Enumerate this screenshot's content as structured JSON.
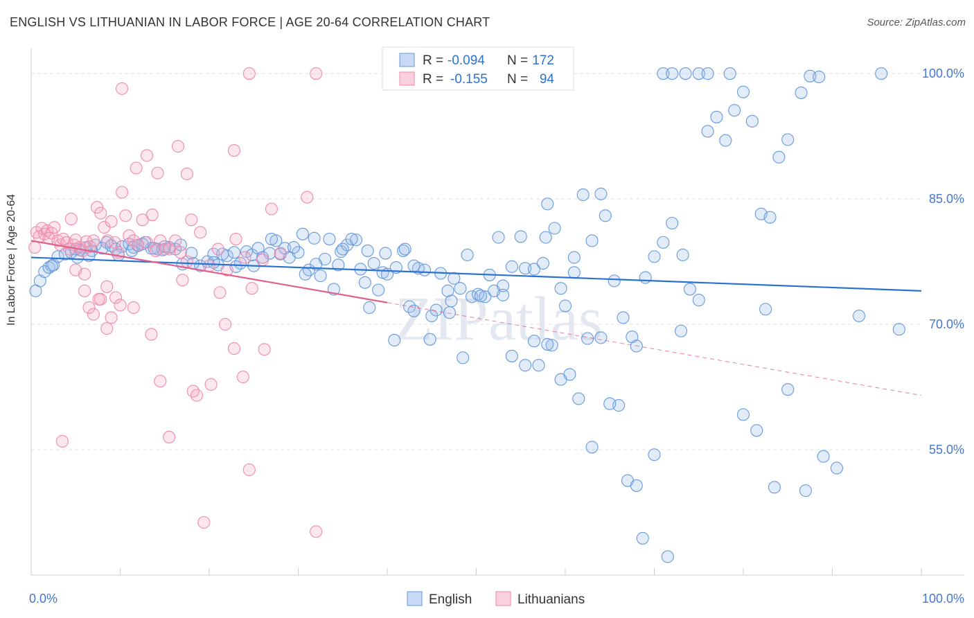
{
  "title": "ENGLISH VS LITHUANIAN IN LABOR FORCE | AGE 20-64 CORRELATION CHART",
  "source": "Source: ZipAtlas.com",
  "watermark": "ZIPatlas",
  "colors": {
    "english": "#6699dd",
    "english_line": "#2a72d0",
    "lithuanians": "#f08aaa",
    "lithuanians_line": "#e0608a",
    "axis_value": "#4477cc"
  },
  "legend": {
    "rows": [
      {
        "r_label": "R =",
        "r_value": "-0.094",
        "n_label": "N =",
        "n_value": "172"
      },
      {
        "r_label": "R =",
        "r_value": "-0.155",
        "n_label": "N =",
        "n_value": "94"
      }
    ]
  },
  "chart_data": {
    "type": "scatter",
    "xlabel": "",
    "ylabel": "In Labor Force | Age 20-64",
    "xlim": [
      0,
      100
    ],
    "ylim": [
      40,
      103
    ],
    "x_tick_labels": [
      "0.0%",
      "100.0%"
    ],
    "y_ticks": [
      55,
      70,
      85,
      100
    ],
    "y_tick_labels": [
      "55.0%",
      "70.0%",
      "85.0%",
      "100.0%"
    ],
    "grid": true,
    "legend_position": "top-center",
    "series": [
      {
        "name": "English",
        "r": -0.094,
        "n": 172,
        "trend": {
          "x0": 0,
          "y0": 78.0,
          "x1": 100,
          "y1": 74.0,
          "dashed_from": null
        },
        "points": [
          [
            0.5,
            74.0
          ],
          [
            1.0,
            75.2
          ],
          [
            1.5,
            76.3
          ],
          [
            2.0,
            76.8
          ],
          [
            2.5,
            77.1
          ],
          [
            3.0,
            78.1
          ],
          [
            3.8,
            78.4
          ],
          [
            4.5,
            78.6
          ],
          [
            5.0,
            79.0
          ],
          [
            5.5,
            78.9
          ],
          [
            6.2,
            79.2
          ],
          [
            6.8,
            78.8
          ],
          [
            7.2,
            79.5
          ],
          [
            8.0,
            79.1
          ],
          [
            8.5,
            79.8
          ],
          [
            9.0,
            79.4
          ],
          [
            9.5,
            79.0
          ],
          [
            10.2,
            79.3
          ],
          [
            11.0,
            79.6
          ],
          [
            11.5,
            79.2
          ],
          [
            12.0,
            79.4
          ],
          [
            12.8,
            79.8
          ],
          [
            13.5,
            79.1
          ],
          [
            14.2,
            79.0
          ],
          [
            14.8,
            78.9
          ],
          [
            15.5,
            79.2
          ],
          [
            16.2,
            79.0
          ],
          [
            17.0,
            77.2
          ],
          [
            18.0,
            78.5
          ],
          [
            19.0,
            77.0
          ],
          [
            19.8,
            77.5
          ],
          [
            20.5,
            78.4
          ],
          [
            21.0,
            77.1
          ],
          [
            22.0,
            78.2
          ],
          [
            22.8,
            78.6
          ],
          [
            23.5,
            77.3
          ],
          [
            24.2,
            78.7
          ],
          [
            24.8,
            78.3
          ],
          [
            25.5,
            79.1
          ],
          [
            26.0,
            78.0
          ],
          [
            26.8,
            78.5
          ],
          [
            27.5,
            80.0
          ],
          [
            28.0,
            78.4
          ],
          [
            28.5,
            79.1
          ],
          [
            29.0,
            78.0
          ],
          [
            30.0,
            78.6
          ],
          [
            30.5,
            80.8
          ],
          [
            31.2,
            76.5
          ],
          [
            31.8,
            80.3
          ],
          [
            32.5,
            75.8
          ],
          [
            33.0,
            77.8
          ],
          [
            33.5,
            80.2
          ],
          [
            34.0,
            74.2
          ],
          [
            34.8,
            78.7
          ],
          [
            35.5,
            79.5
          ],
          [
            36.5,
            80.1
          ],
          [
            37.0,
            76.6
          ],
          [
            37.8,
            78.8
          ],
          [
            38.5,
            77.3
          ],
          [
            39.0,
            74.1
          ],
          [
            39.5,
            76.2
          ],
          [
            40.0,
            76.0
          ],
          [
            41.0,
            76.8
          ],
          [
            41.8,
            78.8
          ],
          [
            42.5,
            72.1
          ],
          [
            43.0,
            71.6
          ],
          [
            43.5,
            76.7
          ],
          [
            44.2,
            76.5
          ],
          [
            45.0,
            71.0
          ],
          [
            45.5,
            71.7
          ],
          [
            46.0,
            76.1
          ],
          [
            47.0,
            71.4
          ],
          [
            47.5,
            75.5
          ],
          [
            48.2,
            74.3
          ],
          [
            49.0,
            78.3
          ],
          [
            49.5,
            73.3
          ],
          [
            50.2,
            73.6
          ],
          [
            51.0,
            73.3
          ],
          [
            51.5,
            75.9
          ],
          [
            52.0,
            74.0
          ],
          [
            52.5,
            80.4
          ],
          [
            53.0,
            74.6
          ],
          [
            54.0,
            76.9
          ],
          [
            55.0,
            80.5
          ],
          [
            55.5,
            76.7
          ],
          [
            56.5,
            76.6
          ],
          [
            57.5,
            77.3
          ],
          [
            58.0,
            84.4
          ],
          [
            58.8,
            81.5
          ],
          [
            59.5,
            74.3
          ],
          [
            60.0,
            72.2
          ],
          [
            61.0,
            76.2
          ],
          [
            62.0,
            85.5
          ],
          [
            63.0,
            80.0
          ],
          [
            64.0,
            85.6
          ],
          [
            65.5,
            75.2
          ],
          [
            66.5,
            70.8
          ],
          [
            67.5,
            68.5
          ],
          [
            68.0,
            67.4
          ],
          [
            69.0,
            75.6
          ],
          [
            70.0,
            78.1
          ],
          [
            71.0,
            79.8
          ],
          [
            72.0,
            82.1
          ],
          [
            73.0,
            69.2
          ],
          [
            74.0,
            74.2
          ],
          [
            75.0,
            72.9
          ],
          [
            76.0,
            93.1
          ],
          [
            77.0,
            94.8
          ],
          [
            78.0,
            92.0
          ],
          [
            79.0,
            95.6
          ],
          [
            80.0,
            97.8
          ],
          [
            81.0,
            94.3
          ],
          [
            82.0,
            83.2
          ],
          [
            83.0,
            82.8
          ],
          [
            84.0,
            90.0
          ],
          [
            85.0,
            92.1
          ],
          [
            86.5,
            97.7
          ],
          [
            87.5,
            99.7
          ],
          [
            88.5,
            99.6
          ],
          [
            56.5,
            68.0
          ],
          [
            58.5,
            67.5
          ],
          [
            59.5,
            63.4
          ],
          [
            60.5,
            64.0
          ],
          [
            61.5,
            61.1
          ],
          [
            63.0,
            55.3
          ],
          [
            64.0,
            68.4
          ],
          [
            66.0,
            60.3
          ],
          [
            67.0,
            51.3
          ],
          [
            68.0,
            50.7
          ],
          [
            68.7,
            44.4
          ],
          [
            70.0,
            54.4
          ],
          [
            71.0,
            100.0
          ],
          [
            72.0,
            100.0
          ],
          [
            73.5,
            100.0
          ],
          [
            75.0,
            100.0
          ],
          [
            76.0,
            100.0
          ],
          [
            78.5,
            100.0
          ],
          [
            80.0,
            59.2
          ],
          [
            81.5,
            57.3
          ],
          [
            82.5,
            71.8
          ],
          [
            83.5,
            50.5
          ],
          [
            85.0,
            62.2
          ],
          [
            87.0,
            50.1
          ],
          [
            89.0,
            54.2
          ],
          [
            90.5,
            52.8
          ],
          [
            93.0,
            71.0
          ],
          [
            95.5,
            100.0
          ],
          [
            97.5,
            69.4
          ],
          [
            2.3,
            77.0
          ],
          [
            6.5,
            78.2
          ],
          [
            5.2,
            78.0
          ],
          [
            11.3,
            78.8
          ],
          [
            12.5,
            79.6
          ],
          [
            15.0,
            79.3
          ],
          [
            18.2,
            77.3
          ],
          [
            20.5,
            77.4
          ],
          [
            23.0,
            76.9
          ],
          [
            25.0,
            77.0
          ],
          [
            29.5,
            79.2
          ],
          [
            34.5,
            77.1
          ],
          [
            36.0,
            80.2
          ],
          [
            38.0,
            72.0
          ],
          [
            40.8,
            68.1
          ],
          [
            44.8,
            68.2
          ],
          [
            47.2,
            72.8
          ],
          [
            50.5,
            73.4
          ],
          [
            53.0,
            73.5
          ],
          [
            54.0,
            66.2
          ],
          [
            55.5,
            65.1
          ],
          [
            57.0,
            65.1
          ],
          [
            58.0,
            67.6
          ],
          [
            62.5,
            68.3
          ],
          [
            65.0,
            60.5
          ],
          [
            61.0,
            78.0
          ],
          [
            64.5,
            83.0
          ],
          [
            46.8,
            74.0
          ],
          [
            48.5,
            66.0
          ],
          [
            71.5,
            42.2
          ],
          [
            43.0,
            77.0
          ],
          [
            37.5,
            75.0
          ],
          [
            32.0,
            77.2
          ],
          [
            27.0,
            80.2
          ],
          [
            9.8,
            78.3
          ],
          [
            13.8,
            79.1
          ],
          [
            16.8,
            79.5
          ],
          [
            21.5,
            78.4
          ],
          [
            30.8,
            76.0
          ],
          [
            35.0,
            79.0
          ],
          [
            39.8,
            78.5
          ],
          [
            42.0,
            79.0
          ],
          [
            57.8,
            80.4
          ],
          [
            73.2,
            78.3
          ]
        ]
      },
      {
        "name": "Lithuanians",
        "r": -0.155,
        "n": 94,
        "trend": {
          "x0": 0,
          "y0": 80.0,
          "x1": 100,
          "y1": 61.5,
          "dashed_from": 40
        },
        "points": [
          [
            0.4,
            79.2
          ],
          [
            0.6,
            81.0
          ],
          [
            0.9,
            80.5
          ],
          [
            1.2,
            81.5
          ],
          [
            1.5,
            80.8
          ],
          [
            1.8,
            81.2
          ],
          [
            2.0,
            80.3
          ],
          [
            2.3,
            80.9
          ],
          [
            2.6,
            81.6
          ],
          [
            3.0,
            80.0
          ],
          [
            3.3,
            79.5
          ],
          [
            3.6,
            80.2
          ],
          [
            4.0,
            79.8
          ],
          [
            4.3,
            79.0
          ],
          [
            4.5,
            82.6
          ],
          [
            4.8,
            79.5
          ],
          [
            5.0,
            80.1
          ],
          [
            5.5,
            79.2
          ],
          [
            5.8,
            78.8
          ],
          [
            6.2,
            79.9
          ],
          [
            6.6,
            79.3
          ],
          [
            7.0,
            80.0
          ],
          [
            7.4,
            84.0
          ],
          [
            7.8,
            83.3
          ],
          [
            8.2,
            81.6
          ],
          [
            8.6,
            80.0
          ],
          [
            9.0,
            82.3
          ],
          [
            9.4,
            79.8
          ],
          [
            9.8,
            78.6
          ],
          [
            10.2,
            85.8
          ],
          [
            10.6,
            83.0
          ],
          [
            11.0,
            80.6
          ],
          [
            11.5,
            80.0
          ],
          [
            12.0,
            79.5
          ],
          [
            12.5,
            82.5
          ],
          [
            13.0,
            79.8
          ],
          [
            13.6,
            83.1
          ],
          [
            14.0,
            78.8
          ],
          [
            14.5,
            80.0
          ],
          [
            15.0,
            79.0
          ],
          [
            15.5,
            79.0
          ],
          [
            16.2,
            80.0
          ],
          [
            16.8,
            78.6
          ],
          [
            17.5,
            77.5
          ],
          [
            18.0,
            82.5
          ],
          [
            19.0,
            81.0
          ],
          [
            20.0,
            77.0
          ],
          [
            21.0,
            79.0
          ],
          [
            22.0,
            76.5
          ],
          [
            23.0,
            80.2
          ],
          [
            24.0,
            78.0
          ],
          [
            26.0,
            77.7
          ],
          [
            27.0,
            83.8
          ],
          [
            28.0,
            78.5
          ],
          [
            10.2,
            98.2
          ],
          [
            11.8,
            88.7
          ],
          [
            13.0,
            90.2
          ],
          [
            14.2,
            88.1
          ],
          [
            16.5,
            91.3
          ],
          [
            17.5,
            88.0
          ],
          [
            22.8,
            90.8
          ],
          [
            24.5,
            100.0
          ],
          [
            32.0,
            100.0
          ],
          [
            31.0,
            85.2
          ],
          [
            6.0,
            74.0
          ],
          [
            6.5,
            72.0
          ],
          [
            7.0,
            71.2
          ],
          [
            7.8,
            73.0
          ],
          [
            8.5,
            74.5
          ],
          [
            9.0,
            70.8
          ],
          [
            9.5,
            73.2
          ],
          [
            10.0,
            72.3
          ],
          [
            11.5,
            72.0
          ],
          [
            13.5,
            68.8
          ],
          [
            14.5,
            63.2
          ],
          [
            15.5,
            56.5
          ],
          [
            17.0,
            75.3
          ],
          [
            18.2,
            62.0
          ],
          [
            18.6,
            61.5
          ],
          [
            19.4,
            46.3
          ],
          [
            20.2,
            62.8
          ],
          [
            21.2,
            73.8
          ],
          [
            21.8,
            70.0
          ],
          [
            22.8,
            67.1
          ],
          [
            23.8,
            63.7
          ],
          [
            24.8,
            74.3
          ],
          [
            24.5,
            52.6
          ],
          [
            26.2,
            67.0
          ],
          [
            32.0,
            45.2
          ],
          [
            8.5,
            69.5
          ],
          [
            6.0,
            76.0
          ],
          [
            3.5,
            56.0
          ],
          [
            7.6,
            73.0
          ],
          [
            5.0,
            76.5
          ]
        ]
      }
    ]
  },
  "bottom_legend": [
    {
      "label": "English"
    },
    {
      "label": "Lithuanians"
    }
  ]
}
